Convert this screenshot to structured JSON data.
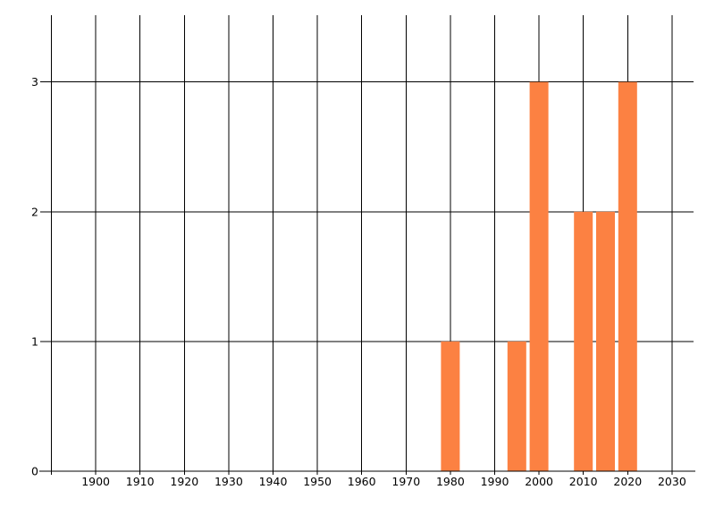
{
  "page": {
    "title": "",
    "background_color": "#ffffff"
  },
  "chart_data": {
    "type": "bar",
    "title": "",
    "subtitle": "",
    "xlabel": "",
    "ylabel": "",
    "legend": false,
    "grid": true,
    "bin_size_years": 5,
    "categories": [
      1980,
      1995,
      2000,
      2010,
      2015,
      2020
    ],
    "values": [
      1,
      1,
      3,
      2,
      2,
      3
    ],
    "x_ticks": [
      1900,
      1910,
      1920,
      1930,
      1940,
      1950,
      1960,
      1970,
      1980,
      1990,
      2000,
      2010,
      2020,
      2030
    ],
    "x_tick_labels": [
      "1900",
      "1910",
      "1920",
      "1930",
      "1940",
      "1950",
      "1960",
      "1970",
      "1980",
      "1990",
      "2000",
      "2010",
      "2020",
      "2030"
    ],
    "x_gridlines": [
      1890,
      1900,
      1910,
      1920,
      1930,
      1940,
      1950,
      1960,
      1970,
      1980,
      1990,
      2000,
      2010,
      2020,
      2030
    ],
    "y_ticks": [
      0,
      1,
      2,
      3
    ],
    "y_tick_labels": [
      "0",
      "1",
      "2",
      "3"
    ],
    "xlim": [
      1888,
      2035
    ],
    "ylim": [
      0,
      3.5
    ],
    "colors": {
      "bar": "#fc8142",
      "grid": "#000000",
      "axis": "#000000",
      "tick_label": "#000000",
      "background": "#ffffff"
    }
  }
}
